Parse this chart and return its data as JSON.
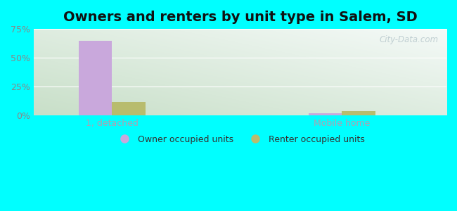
{
  "title": "Owners and renters by unit type in Salem, SD",
  "categories": [
    "1, detached",
    "Mobile home"
  ],
  "owner_values": [
    65.0,
    2.0
  ],
  "renter_values": [
    12.0,
    4.0
  ],
  "owner_color": "#c9a8dc",
  "renter_color": "#b8bc6e",
  "outer_bg": "#00ffff",
  "ylim": [
    0,
    75
  ],
  "yticks": [
    0,
    25,
    50,
    75
  ],
  "ytick_labels": [
    "0%",
    "25%",
    "50%",
    "75%"
  ],
  "bar_width": 0.32,
  "title_fontsize": 14,
  "watermark": "City-Data.com",
  "legend_labels": [
    "Owner occupied units",
    "Renter occupied units"
  ],
  "group_positions": [
    1.0,
    3.2
  ],
  "xlim": [
    0.25,
    4.2
  ],
  "xtick_color": "#b0a0b0",
  "ytick_color": "#888888",
  "grid_color": "#ffffff",
  "bg_color_topleft": "#e8f5e8",
  "bg_color_topright": "#f0faf8",
  "bg_color_bottomleft": "#d0ead0",
  "bg_color_bottomright": "#e0f5f0"
}
